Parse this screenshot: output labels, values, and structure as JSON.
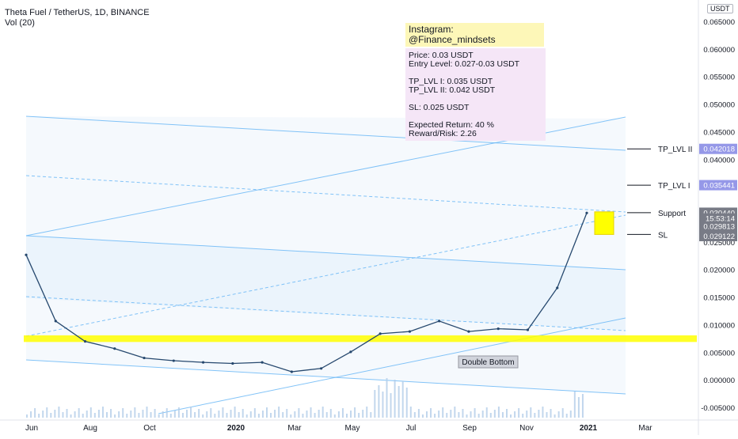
{
  "header": {
    "symbol_line": "Theta Fuel / TetherUS, 1D, BINANCE",
    "volume_line": "Vol (20)"
  },
  "price_axis": {
    "unit": "USDT",
    "ticks": [
      "0.065000",
      "0.060000",
      "0.055000",
      "0.050000",
      "0.045000",
      "0.040000",
      "0.035000",
      "0.030000",
      "0.025000",
      "0.020000",
      "0.015000",
      "0.010000",
      "0.005000",
      "0.000000",
      "-0.005000"
    ],
    "tick_values": [
      0.065,
      0.06,
      0.055,
      0.05,
      0.045,
      0.04,
      0.035,
      0.03,
      0.025,
      0.02,
      0.015,
      0.01,
      0.005,
      0.0,
      -0.005
    ],
    "badges": [
      {
        "label": "0.042018",
        "value": 0.042018,
        "color": "#9598e8"
      },
      {
        "label": "0.035441",
        "value": 0.035441,
        "color": "#9598e8"
      },
      {
        "label": "0.030440",
        "value": 0.03044,
        "color": "#787b86"
      },
      {
        "label": "15:53:14",
        "value": 0.0294,
        "color": "#787b86"
      },
      {
        "label": "0.029813",
        "value": 0.028,
        "color": "#787b86"
      },
      {
        "label": "0.029122",
        "value": 0.0262,
        "color": "#787b86"
      }
    ]
  },
  "time_axis": {
    "ticks": [
      "Jun",
      "Aug",
      "Oct",
      "2020",
      "Mar",
      "May",
      "Jul",
      "Sep",
      "Nov",
      "2021",
      "Mar"
    ]
  },
  "info_box": {
    "title_line1": "Instagram:",
    "title_line2": "@Finance_mindsets",
    "price": "Price: 0.03 USDT",
    "entry": "Entry Level: 0.027-0.03 USDT",
    "tp1": "TP_LVL I: 0.035 USDT",
    "tp2": "TP_LVL II: 0.042 USDT",
    "sl": "SL: 0.025 USDT",
    "expected_return": "Expected Return: 40 %",
    "reward_risk": "Reward/Risk: 2.26"
  },
  "annotations": {
    "tp2": "TP_LVL II",
    "tp1": "TP_LVL I",
    "support": "Support",
    "sl": "SL",
    "double_bottom": "Double Bottom"
  },
  "chart_data": {
    "type": "line",
    "title": "Theta Fuel / TetherUS, 1D, BINANCE",
    "ylabel": "USDT",
    "ylim": [
      -0.0063,
      0.0675
    ],
    "x": [
      "2019-06",
      "2019-07",
      "2019-08",
      "2019-09",
      "2019-10",
      "2019-11",
      "2019-12",
      "2020-01",
      "2020-02",
      "2020-03",
      "2020-04",
      "2020-05",
      "2020-06",
      "2020-07",
      "2020-08",
      "2020-09",
      "2020-10",
      "2020-11",
      "2020-12",
      "2021-01"
    ],
    "series": [
      {
        "values": [
          0.0228,
          0.0108,
          0.0071,
          0.0058,
          0.0041,
          0.0036,
          0.0033,
          0.0031,
          0.0033,
          0.0016,
          0.0022,
          0.0052,
          0.0085,
          0.0089,
          0.0108,
          0.0089,
          0.0094,
          0.0092,
          0.0168,
          0.0304
        ]
      }
    ],
    "key_levels": {
      "tp_lvl_2": 0.042018,
      "tp_lvl_1": 0.035441,
      "support": 0.03044,
      "sl": 0.0265
    },
    "support_zone": [
      0.007,
      0.0082
    ],
    "grid": false,
    "legend": "none"
  }
}
